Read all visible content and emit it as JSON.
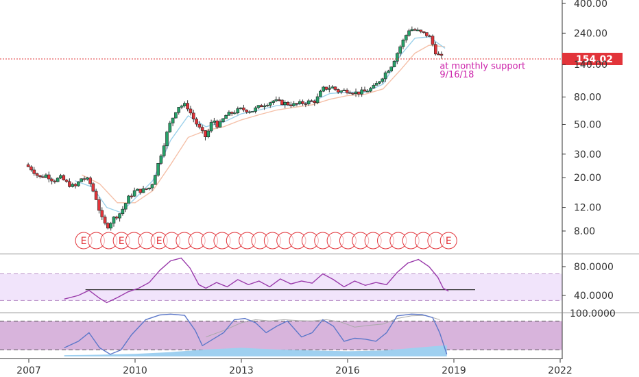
{
  "chart_data": [
    {
      "type": "candlestick",
      "y_scale": "log",
      "ylim": [
        6.5,
        420
      ],
      "y_ticks": [
        {
          "value": 8,
          "label": "8.00"
        },
        {
          "value": 12,
          "label": "12.00"
        },
        {
          "value": 20,
          "label": "20.00"
        },
        {
          "value": 30,
          "label": "30.00"
        },
        {
          "value": 50,
          "label": "50.00"
        },
        {
          "value": 80,
          "label": "80.00"
        },
        {
          "value": 140,
          "label": "140.00"
        },
        {
          "value": 240,
          "label": "240.00"
        },
        {
          "value": 400,
          "label": "400.00"
        }
      ],
      "x_ticks": [
        "2007",
        "2010",
        "2013",
        "2016",
        "2019",
        "2022"
      ],
      "x_tick_years": [
        2007,
        2010,
        2013,
        2016,
        2019,
        2022
      ],
      "xlim": [
        2006.55,
        2022.3
      ],
      "price_series": [
        [
          2006.9,
          25
        ],
        [
          2007.1,
          23
        ],
        [
          2007.3,
          20
        ],
        [
          2007.5,
          21
        ],
        [
          2007.7,
          19
        ],
        [
          2007.9,
          20
        ],
        [
          2008.1,
          18
        ],
        [
          2008.3,
          17
        ],
        [
          2008.5,
          20
        ],
        [
          2008.7,
          19
        ],
        [
          2008.9,
          14
        ],
        [
          2009.05,
          10
        ],
        [
          2009.2,
          8.5
        ],
        [
          2009.4,
          10
        ],
        [
          2009.6,
          11
        ],
        [
          2009.8,
          14
        ],
        [
          2010.0,
          16
        ],
        [
          2010.2,
          16
        ],
        [
          2010.45,
          17
        ],
        [
          2010.7,
          28
        ],
        [
          2010.95,
          48
        ],
        [
          2011.2,
          68
        ],
        [
          2011.45,
          70
        ],
        [
          2011.65,
          55
        ],
        [
          2011.85,
          45
        ],
        [
          2012.0,
          40
        ],
        [
          2012.2,
          55
        ],
        [
          2012.35,
          48
        ],
        [
          2012.55,
          58
        ],
        [
          2012.8,
          62
        ],
        [
          2013.0,
          65
        ],
        [
          2013.3,
          63
        ],
        [
          2013.6,
          70
        ],
        [
          2013.9,
          75
        ],
        [
          2014.2,
          72
        ],
        [
          2014.5,
          70
        ],
        [
          2014.8,
          73
        ],
        [
          2015.1,
          75
        ],
        [
          2015.3,
          92
        ],
        [
          2015.55,
          95
        ],
        [
          2015.75,
          88
        ],
        [
          2016.0,
          90
        ],
        [
          2016.25,
          86
        ],
        [
          2016.5,
          88
        ],
        [
          2016.75,
          95
        ],
        [
          2017.0,
          115
        ],
        [
          2017.25,
          140
        ],
        [
          2017.5,
          195
        ],
        [
          2017.75,
          260
        ],
        [
          2017.95,
          250
        ],
        [
          2018.1,
          240
        ],
        [
          2018.3,
          230
        ],
        [
          2018.5,
          170
        ],
        [
          2018.7,
          154
        ]
      ],
      "ma_fast": [
        [
          2008.3,
          19
        ],
        [
          2008.8,
          17
        ],
        [
          2009.2,
          12
        ],
        [
          2009.6,
          11
        ],
        [
          2010.0,
          14
        ],
        [
          2010.5,
          19
        ],
        [
          2011.0,
          38
        ],
        [
          2011.5,
          58
        ],
        [
          2012.0,
          48
        ],
        [
          2012.5,
          52
        ],
        [
          2013.0,
          60
        ],
        [
          2013.5,
          64
        ],
        [
          2014.0,
          69
        ],
        [
          2014.5,
          70
        ],
        [
          2015.0,
          74
        ],
        [
          2015.5,
          85
        ],
        [
          2016.0,
          87
        ],
        [
          2016.5,
          87
        ],
        [
          2017.0,
          100
        ],
        [
          2017.5,
          165
        ],
        [
          2017.9,
          220
        ],
        [
          2018.3,
          225
        ],
        [
          2018.75,
          185
        ]
      ],
      "ma_slow": [
        [
          2008.5,
          21
        ],
        [
          2009.0,
          18
        ],
        [
          2009.5,
          13
        ],
        [
          2010.0,
          13
        ],
        [
          2010.5,
          16
        ],
        [
          2011.0,
          25
        ],
        [
          2011.5,
          40
        ],
        [
          2012.0,
          45
        ],
        [
          2012.5,
          48
        ],
        [
          2013.0,
          54
        ],
        [
          2013.5,
          59
        ],
        [
          2014.0,
          64
        ],
        [
          2014.5,
          67
        ],
        [
          2015.0,
          70
        ],
        [
          2015.5,
          77
        ],
        [
          2016.0,
          82
        ],
        [
          2016.5,
          84
        ],
        [
          2017.0,
          92
        ],
        [
          2017.5,
          128
        ],
        [
          2017.9,
          170
        ],
        [
          2018.3,
          195
        ],
        [
          2018.75,
          190
        ]
      ],
      "last_price": {
        "value": 154.02,
        "label": "154.02"
      },
      "earnings_marker": {
        "label": "E",
        "count": 30,
        "start": 2008.55,
        "end": 2018.85,
        "labeled_indexes": [
          0,
          3,
          6,
          29
        ]
      },
      "annotations": [
        {
          "text": "at monthly support",
          "x": 2018.6,
          "y": 130
        },
        {
          "text": "9/16/18",
          "x": 2018.6,
          "y": 112
        }
      ]
    },
    {
      "type": "line",
      "name_hint": "oscillator-1",
      "ylim": [
        25,
        105
      ],
      "y_ticks": [
        {
          "value": 80,
          "label": "80.0000"
        },
        {
          "value": 40,
          "label": "40.0000"
        }
      ],
      "band": [
        33,
        70
      ],
      "horizontal_line": {
        "value": 48,
        "x_start": 2008.6,
        "x_end": 2019.6
      },
      "series": [
        [
          2008.0,
          35
        ],
        [
          2008.4,
          40
        ],
        [
          2008.7,
          47
        ],
        [
          2009.0,
          36
        ],
        [
          2009.2,
          30
        ],
        [
          2009.5,
          37
        ],
        [
          2009.8,
          45
        ],
        [
          2010.1,
          50
        ],
        [
          2010.4,
          58
        ],
        [
          2010.7,
          75
        ],
        [
          2011.0,
          88
        ],
        [
          2011.3,
          92
        ],
        [
          2011.55,
          78
        ],
        [
          2011.8,
          55
        ],
        [
          2012.0,
          50
        ],
        [
          2012.3,
          58
        ],
        [
          2012.6,
          52
        ],
        [
          2012.9,
          62
        ],
        [
          2013.2,
          55
        ],
        [
          2013.5,
          60
        ],
        [
          2013.8,
          52
        ],
        [
          2014.1,
          63
        ],
        [
          2014.4,
          56
        ],
        [
          2014.7,
          60
        ],
        [
          2015.0,
          57
        ],
        [
          2015.3,
          70
        ],
        [
          2015.6,
          62
        ],
        [
          2015.9,
          52
        ],
        [
          2016.2,
          60
        ],
        [
          2016.5,
          54
        ],
        [
          2016.8,
          58
        ],
        [
          2017.1,
          55
        ],
        [
          2017.4,
          72
        ],
        [
          2017.7,
          85
        ],
        [
          2018.0,
          90
        ],
        [
          2018.3,
          80
        ],
        [
          2018.55,
          65
        ],
        [
          2018.7,
          50
        ],
        [
          2018.85,
          46
        ]
      ]
    },
    {
      "type": "line",
      "name_hint": "oscillator-2",
      "ylim": [
        0,
        100
      ],
      "y_ticks": [
        {
          "value": 100,
          "label": "100.0000"
        }
      ],
      "band": [
        15,
        82
      ],
      "series": [
        [
          2008.0,
          20
        ],
        [
          2008.4,
          35
        ],
        [
          2008.7,
          55
        ],
        [
          2009.0,
          20
        ],
        [
          2009.3,
          5
        ],
        [
          2009.6,
          15
        ],
        [
          2009.9,
          50
        ],
        [
          2010.3,
          85
        ],
        [
          2010.7,
          96
        ],
        [
          2011.0,
          98
        ],
        [
          2011.4,
          95
        ],
        [
          2011.7,
          60
        ],
        [
          2011.9,
          25
        ],
        [
          2012.2,
          40
        ],
        [
          2012.5,
          55
        ],
        [
          2012.8,
          85
        ],
        [
          2013.1,
          88
        ],
        [
          2013.4,
          78
        ],
        [
          2013.7,
          55
        ],
        [
          2014.0,
          70
        ],
        [
          2014.3,
          82
        ],
        [
          2014.7,
          45
        ],
        [
          2015.0,
          55
        ],
        [
          2015.3,
          85
        ],
        [
          2015.6,
          70
        ],
        [
          2015.9,
          35
        ],
        [
          2016.2,
          42
        ],
        [
          2016.5,
          40
        ],
        [
          2016.8,
          35
        ],
        [
          2017.1,
          55
        ],
        [
          2017.4,
          94
        ],
        [
          2017.8,
          98
        ],
        [
          2018.1,
          97
        ],
        [
          2018.4,
          90
        ],
        [
          2018.6,
          55
        ],
        [
          2018.8,
          5
        ]
      ],
      "signal_series": [
        [
          2012.0,
          45
        ],
        [
          2012.5,
          60
        ],
        [
          2013.0,
          78
        ],
        [
          2013.4,
          85
        ],
        [
          2013.8,
          82
        ],
        [
          2014.2,
          85
        ],
        [
          2014.6,
          83
        ],
        [
          2015.0,
          82
        ],
        [
          2015.4,
          85
        ],
        [
          2015.8,
          80
        ],
        [
          2016.2,
          68
        ],
        [
          2016.6,
          72
        ],
        [
          2017.0,
          75
        ],
        [
          2017.4,
          88
        ],
        [
          2017.8,
          94
        ],
        [
          2018.2,
          95
        ],
        [
          2018.6,
          85
        ]
      ],
      "histogram_series": [
        [
          2008.0,
          3
        ],
        [
          2009.0,
          4
        ],
        [
          2010.0,
          6
        ],
        [
          2011.0,
          10
        ],
        [
          2012.0,
          16
        ],
        [
          2013.0,
          20
        ],
        [
          2014.0,
          16
        ],
        [
          2015.0,
          14
        ],
        [
          2016.0,
          12
        ],
        [
          2017.0,
          14
        ],
        [
          2017.6,
          18
        ],
        [
          2018.2,
          22
        ],
        [
          2018.8,
          26
        ]
      ]
    }
  ],
  "colors": {
    "up_candle": "#26a269",
    "down_candle": "#e2343a",
    "ma_fast": "#9ad0ea",
    "ma_slow": "#f5c0a8",
    "last_price_bg": "#e2343a",
    "osc1_band": "#f1e4fb",
    "osc1_line": "#9a3bab",
    "osc2_band": "#d8b4dc",
    "osc2_line": "#5b77c9",
    "osc2_signal": "#aaaaaa",
    "histogram": "#9fd0f0",
    "annotation": "#cc22aa",
    "earnings": "#e2343a"
  }
}
